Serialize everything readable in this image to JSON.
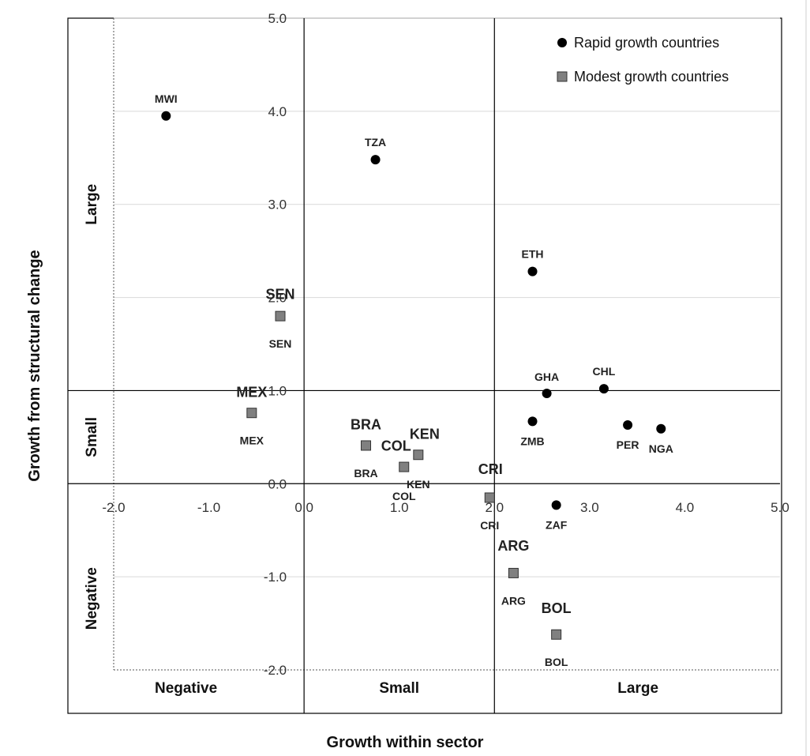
{
  "chart_data": {
    "type": "scatter",
    "xlabel": "Growth within sector",
    "ylabel": "Growth from structural change",
    "xlim": [
      -2.0,
      5.0
    ],
    "ylim": [
      -2.0,
      5.0
    ],
    "x_ticks": [
      "-2.0",
      "-1.0",
      "0.0",
      "1.0",
      "2.0",
      "3.0",
      "4.0",
      "5.0"
    ],
    "y_ticks": [
      "-2.0",
      "-1.0",
      "0.0",
      "1.0",
      "2.0",
      "3.0",
      "4.0",
      "5.0"
    ],
    "grid": "horizontal",
    "legend_position": "top-right",
    "column_labels": [
      "Negative",
      "Small",
      "Large"
    ],
    "row_labels": [
      "Large",
      "Small",
      "Negative"
    ],
    "series": [
      {
        "name": "Rapid growth countries",
        "marker": "circle",
        "color": "#000000",
        "points": [
          {
            "label": "MWI",
            "x": -1.45,
            "y": 3.95
          },
          {
            "label": "TZA",
            "x": 0.75,
            "y": 3.48
          },
          {
            "label": "ETH",
            "x": 2.4,
            "y": 2.28
          },
          {
            "label": "GHA",
            "x": 2.55,
            "y": 0.97
          },
          {
            "label": "CHL",
            "x": 3.15,
            "y": 1.02
          },
          {
            "label": "ZMB",
            "x": 2.4,
            "y": 0.67
          },
          {
            "label": "PER",
            "x": 3.4,
            "y": 0.63
          },
          {
            "label": "NGA",
            "x": 3.75,
            "y": 0.59
          },
          {
            "label": "ZAF",
            "x": 2.65,
            "y": -0.23
          }
        ]
      },
      {
        "name": "Modest growth countries",
        "marker": "square",
        "color": "#808080",
        "points": [
          {
            "label": "SEN",
            "x": -0.25,
            "y": 1.8
          },
          {
            "label": "MEX",
            "x": -0.55,
            "y": 0.76
          },
          {
            "label": "BRA",
            "x": 0.65,
            "y": 0.41
          },
          {
            "label": "KEN",
            "x": 1.2,
            "y": 0.31
          },
          {
            "label": "COL",
            "x": 1.05,
            "y": 0.18
          },
          {
            "label": "CRI",
            "x": 1.95,
            "y": -0.15
          },
          {
            "label": "ARG",
            "x": 2.2,
            "y": -0.96
          },
          {
            "label": "BOL",
            "x": 2.65,
            "y": -1.62
          }
        ]
      }
    ],
    "extra_labels": [
      "SEN",
      "MEX",
      "KEN",
      "COL",
      "BRA",
      "CRI",
      "ARG",
      "BOL"
    ]
  }
}
